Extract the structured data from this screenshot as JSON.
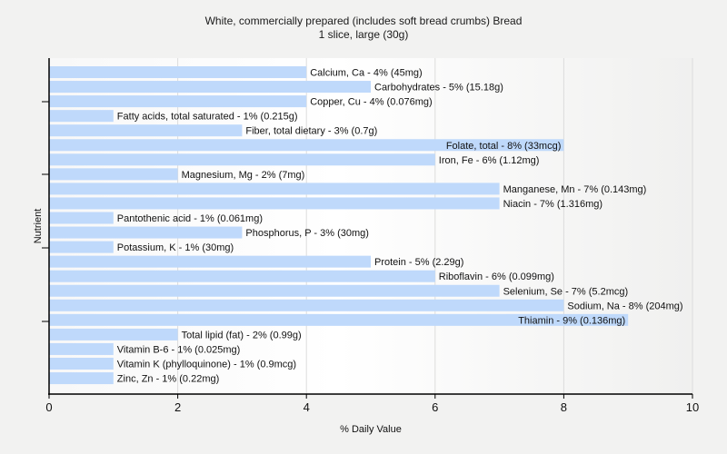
{
  "chart_data": {
    "type": "bar",
    "orientation": "horizontal",
    "title": "White, commercially prepared (includes soft bread crumbs) Bread",
    "subtitle": "1 slice, large (30g)",
    "xlabel": "% Daily Value",
    "ylabel": "Nutrient",
    "xlim": [
      0,
      10
    ],
    "xticks": [
      0,
      2,
      4,
      6,
      8,
      10
    ],
    "grid": true,
    "bar_color": "#bfd9fb",
    "categories": [
      "Calcium, Ca",
      "Carbohydrates",
      "Copper, Cu",
      "Fatty acids, total saturated",
      "Fiber, total dietary",
      "Folate, total",
      "Iron, Fe",
      "Magnesium, Mg",
      "Manganese, Mn",
      "Niacin",
      "Pantothenic acid",
      "Phosphorus, P",
      "Potassium, K",
      "Protein",
      "Riboflavin",
      "Selenium, Se",
      "Sodium, Na",
      "Thiamin",
      "Total lipid (fat)",
      "Vitamin B-6",
      "Vitamin K (phylloquinone)",
      "Zinc, Zn"
    ],
    "values": [
      4,
      5,
      4,
      1,
      3,
      8,
      6,
      2,
      7,
      7,
      1,
      3,
      1,
      5,
      6,
      7,
      8,
      9,
      2,
      1,
      1,
      1
    ],
    "labels": [
      "Calcium, Ca - 4% (45mg)",
      "Carbohydrates - 5% (15.18g)",
      "Copper, Cu - 4% (0.076mg)",
      "Fatty acids, total saturated - 1% (0.215g)",
      "Fiber, total dietary - 3% (0.7g)",
      "Folate, total - 8% (33mcg)",
      "Iron, Fe - 6% (1.12mg)",
      "Magnesium, Mg - 2% (7mg)",
      "Manganese, Mn - 7% (0.143mg)",
      "Niacin - 7% (1.316mg)",
      "Pantothenic acid - 1% (0.061mg)",
      "Phosphorus, P - 3% (30mg)",
      "Potassium, K - 1% (30mg)",
      "Protein - 5% (2.29g)",
      "Riboflavin - 6% (0.099mg)",
      "Selenium, Se - 7% (5.2mcg)",
      "Sodium, Na - 8% (204mg)",
      "Thiamin - 9% (0.136mg)",
      "Total lipid (fat) - 2% (0.99g)",
      "Vitamin B-6 - 1% (0.025mg)",
      "Vitamin K (phylloquinone) - 1% (0.9mcg)",
      "Zinc, Zn - 1% (0.22mg)"
    ]
  }
}
